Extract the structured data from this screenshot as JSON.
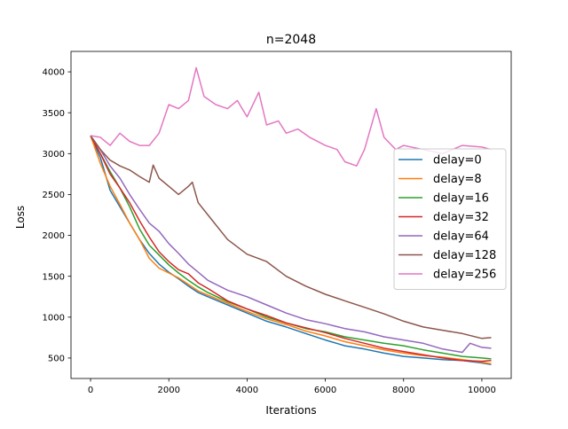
{
  "chart_data": {
    "type": "line",
    "title": "n=2048",
    "xlabel": "Iterations",
    "ylabel": "Loss",
    "xlim": [
      -500,
      10750
    ],
    "ylim": [
      250,
      4250
    ],
    "xticks": [
      0,
      2000,
      4000,
      6000,
      8000,
      10000
    ],
    "yticks": [
      500,
      1000,
      1500,
      2000,
      2500,
      3000,
      3500,
      4000
    ],
    "grid": false,
    "legend_position": "center-right",
    "series": [
      {
        "name": "delay=0",
        "color": "#1f77b4",
        "x": [
          0,
          250,
          500,
          750,
          1000,
          1250,
          1500,
          1750,
          2000,
          2250,
          2500,
          2750,
          3000,
          3500,
          4000,
          4500,
          5000,
          5500,
          6000,
          6500,
          7000,
          7500,
          8000,
          8500,
          9000,
          9500,
          10000,
          10240
        ],
        "y": [
          3220,
          2950,
          2550,
          2350,
          2150,
          1950,
          1780,
          1650,
          1550,
          1470,
          1380,
          1300,
          1250,
          1150,
          1050,
          950,
          880,
          800,
          720,
          650,
          610,
          560,
          520,
          500,
          480,
          470,
          440,
          420
        ]
      },
      {
        "name": "delay=8",
        "color": "#ff7f0e",
        "x": [
          0,
          250,
          500,
          750,
          1000,
          1250,
          1500,
          1750,
          2000,
          2250,
          2500,
          2750,
          3000,
          3500,
          4000,
          4500,
          5000,
          5500,
          6000,
          6500,
          7000,
          7500,
          8000,
          8500,
          9000,
          9500,
          10000,
          10240
        ],
        "y": [
          3220,
          2880,
          2600,
          2380,
          2150,
          1950,
          1720,
          1600,
          1540,
          1480,
          1400,
          1320,
          1270,
          1170,
          1070,
          980,
          910,
          830,
          770,
          700,
          650,
          600,
          560,
          530,
          510,
          480,
          450,
          430
        ]
      },
      {
        "name": "delay=16",
        "color": "#2ca02c",
        "x": [
          0,
          250,
          500,
          750,
          1000,
          1250,
          1500,
          1750,
          2000,
          2250,
          2500,
          2750,
          3000,
          3500,
          4000,
          4500,
          5000,
          5500,
          6000,
          6500,
          7000,
          7500,
          8000,
          8500,
          9000,
          9500,
          10000,
          10240
        ],
        "y": [
          3220,
          3000,
          2780,
          2580,
          2350,
          2080,
          1880,
          1760,
          1640,
          1540,
          1450,
          1370,
          1300,
          1190,
          1100,
          1000,
          930,
          860,
          820,
          760,
          720,
          680,
          650,
          600,
          560,
          520,
          500,
          490
        ]
      },
      {
        "name": "delay=32",
        "color": "#d62728",
        "x": [
          0,
          250,
          500,
          750,
          1000,
          1250,
          1500,
          1750,
          2000,
          2250,
          2500,
          2750,
          3000,
          3500,
          4000,
          4500,
          5000,
          5500,
          6000,
          6500,
          7000,
          7500,
          8000,
          8500,
          9000,
          9500,
          10000,
          10240
        ],
        "y": [
          3220,
          3000,
          2750,
          2580,
          2400,
          2180,
          1980,
          1800,
          1680,
          1580,
          1530,
          1420,
          1350,
          1200,
          1100,
          1020,
          930,
          870,
          810,
          740,
          680,
          620,
          580,
          540,
          500,
          470,
          460,
          470
        ]
      },
      {
        "name": "delay=64",
        "color": "#9467bd",
        "x": [
          0,
          250,
          500,
          750,
          1000,
          1250,
          1500,
          1750,
          2000,
          2250,
          2500,
          2750,
          3000,
          3500,
          4000,
          4500,
          5000,
          5500,
          6000,
          6500,
          7000,
          7500,
          8000,
          8500,
          9000,
          9500,
          9700,
          10000,
          10240
        ],
        "y": [
          3220,
          3050,
          2850,
          2700,
          2500,
          2320,
          2150,
          2050,
          1900,
          1780,
          1650,
          1550,
          1450,
          1330,
          1250,
          1150,
          1050,
          970,
          920,
          860,
          820,
          760,
          720,
          680,
          610,
          570,
          680,
          630,
          620
        ]
      },
      {
        "name": "delay=128",
        "color": "#8c564b",
        "x": [
          0,
          250,
          500,
          750,
          1000,
          1250,
          1500,
          1600,
          1750,
          2000,
          2250,
          2500,
          2600,
          2750,
          3000,
          3500,
          4000,
          4500,
          5000,
          5500,
          6000,
          6500,
          7000,
          7500,
          8000,
          8500,
          9000,
          9500,
          10000,
          10240
        ],
        "y": [
          3220,
          3050,
          2920,
          2850,
          2800,
          2720,
          2650,
          2860,
          2700,
          2600,
          2500,
          2600,
          2650,
          2400,
          2250,
          1950,
          1770,
          1680,
          1500,
          1380,
          1280,
          1200,
          1120,
          1040,
          950,
          880,
          840,
          800,
          740,
          750
        ]
      },
      {
        "name": "delay=256",
        "color": "#e377c2",
        "x": [
          0,
          250,
          500,
          750,
          1000,
          1250,
          1500,
          1750,
          2000,
          2250,
          2500,
          2700,
          2900,
          3200,
          3500,
          3750,
          4000,
          4300,
          4500,
          4800,
          5000,
          5300,
          5600,
          6000,
          6300,
          6500,
          6800,
          7000,
          7300,
          7500,
          7800,
          8000,
          8500,
          9000,
          9500,
          10000,
          10240
        ],
        "y": [
          3220,
          3200,
          3100,
          3250,
          3150,
          3100,
          3100,
          3250,
          3600,
          3550,
          3650,
          4050,
          3700,
          3600,
          3550,
          3650,
          3450,
          3750,
          3350,
          3400,
          3250,
          3300,
          3200,
          3100,
          3050,
          2900,
          2850,
          3050,
          3550,
          3200,
          3050,
          3100,
          3050,
          3000,
          3100,
          3080,
          3050
        ]
      }
    ]
  }
}
